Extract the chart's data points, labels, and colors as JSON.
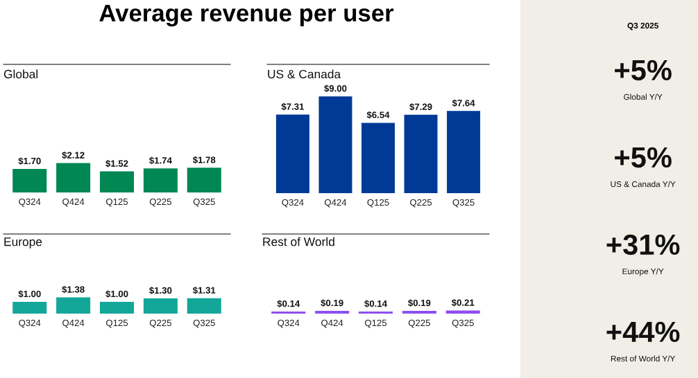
{
  "chart_data": [
    {
      "type": "other",
      "title": "Average revenue per user"
    },
    {
      "type": "bar",
      "title": "Global",
      "categories": [
        "Q324",
        "Q424",
        "Q125",
        "Q225",
        "Q325"
      ],
      "values": [
        1.7,
        2.12,
        1.52,
        1.74,
        1.78
      ],
      "color": "#008753",
      "value_labels": [
        "$1.70",
        "$2.12",
        "$1.52",
        "$1.74",
        "$1.78"
      ]
    },
    {
      "type": "bar",
      "title": "US & Canada",
      "categories": [
        "Q324",
        "Q424",
        "Q125",
        "Q225",
        "Q325"
      ],
      "values": [
        7.31,
        9.0,
        6.54,
        7.29,
        7.64
      ],
      "color": "#003a96",
      "value_labels": [
        "$7.31",
        "$9.00",
        "$6.54",
        "$7.29",
        "$7.64"
      ]
    },
    {
      "type": "bar",
      "title": "Europe",
      "categories": [
        "Q324",
        "Q424",
        "Q125",
        "Q225",
        "Q325"
      ],
      "values": [
        1.0,
        1.38,
        1.0,
        1.3,
        1.31
      ],
      "color": "#13a79a",
      "value_labels": [
        "$1.00",
        "$1.38",
        "$1.00",
        "$1.30",
        "$1.31"
      ]
    },
    {
      "type": "bar",
      "title": "Rest of World",
      "categories": [
        "Q324",
        "Q424",
        "Q125",
        "Q225",
        "Q325"
      ],
      "values": [
        0.14,
        0.19,
        0.14,
        0.19,
        0.21
      ],
      "color": "#8c4ff0",
      "value_labels": [
        "$0.14",
        "$0.19",
        "$0.14",
        "$0.19",
        "$0.21"
      ]
    },
    {
      "type": "other",
      "title": "Q3 2025",
      "annotations": [
        "+5%",
        "Global Y/Y",
        "+5%",
        "US & Canada Y/Y",
        "+31%",
        "Europe Y/Y",
        "+44%",
        "Rest of World Y/Y"
      ]
    }
  ]
}
